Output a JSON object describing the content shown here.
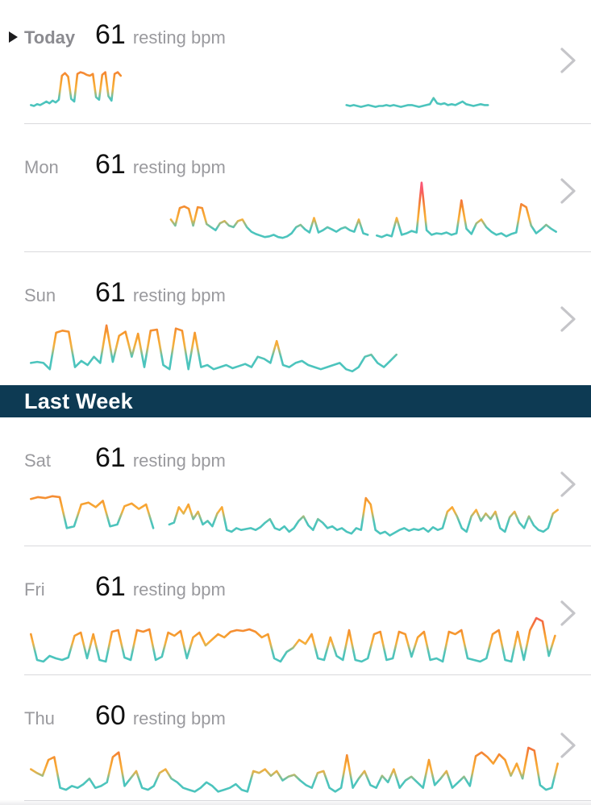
{
  "palette": {
    "header_bg": "#0d3a53",
    "header_text": "#ffffff",
    "line_low_teal": "#4cc4bd",
    "line_mid_amber": "#f9b13c",
    "line_high_orange": "#f59b2e",
    "line_higher_orange_red": "#f4703d",
    "line_peak_red": "#fa5672",
    "chevron_gray": "#c5c5c9",
    "day_label_gray": "#9a9a9e",
    "value_black": "#111111",
    "divider_gray": "#d9d9dc",
    "gradient_anchors_bpm": [
      [
        70,
        "#4cc4bd"
      ],
      [
        80,
        "#f9b13c"
      ],
      [
        92,
        "#f59b2e"
      ],
      [
        106,
        "#f4703d"
      ],
      [
        122,
        "#fa5672"
      ]
    ]
  },
  "icons": {
    "disclosure_triangle": "play-triangle",
    "row_chevron": "chevron-right"
  },
  "sections": [
    {
      "header": null,
      "rows": [
        {
          "day": "Today",
          "value": "61",
          "unit": "resting bpm",
          "chart": {
            "type": "line",
            "x_axis": "time of day (fraction)",
            "y_axis": "heart rate (bpm)",
            "segments": [
              {
                "x0": 0.005,
                "x1": 0.174,
                "values": [
                  62,
                  61,
                  63,
                  62,
                  64,
                  66,
                  64,
                  67,
                  65,
                  68,
                  95,
                  98,
                  94,
                  69,
                  66,
                  97,
                  99,
                  98,
                  96,
                  95,
                  97,
                  71,
                  68,
                  96,
                  99,
                  72,
                  67,
                  97,
                  99,
                  95
                ]
              },
              {
                "x0": 0.598,
                "x1": 0.864,
                "values": [
                  62,
                  61,
                  62,
                  61,
                  60,
                  61,
                  62,
                  61,
                  60,
                  61,
                  61,
                  62,
                  61,
                  62,
                  61,
                  60,
                  61,
                  62,
                  62,
                  61,
                  60,
                  61,
                  62,
                  63,
                  70,
                  64,
                  63,
                  64,
                  62,
                  63,
                  62,
                  64,
                  66,
                  63,
                  62,
                  61,
                  62,
                  63,
                  62,
                  62
                ]
              }
            ]
          }
        },
        {
          "day": "Mon",
          "value": "61",
          "unit": "resting bpm",
          "chart": {
            "type": "line",
            "x_axis": "time of day (fraction)",
            "y_axis": "heart rate (bpm)",
            "segments": [
              {
                "x0": 0.268,
                "x1": 0.638,
                "values": [
                  80,
                  72,
                  95,
                  97,
                  94,
                  72,
                  96,
                  95,
                  74,
                  70,
                  66,
                  75,
                  78,
                  72,
                  70,
                  78,
                  80,
                  70,
                  64,
                  61,
                  59,
                  57,
                  58,
                  60,
                  57,
                  56,
                  58,
                  62,
                  70,
                  73,
                  67,
                  63,
                  82,
                  63,
                  66,
                  70,
                  67,
                  64,
                  68,
                  70,
                  66,
                  64,
                  80,
                  62,
                  60
                ]
              },
              {
                "x0": 0.655,
                "x1": 0.992,
                "values": [
                  59,
                  57,
                  60,
                  58,
                  82,
                  60,
                  62,
                  65,
                  63,
                  128,
                  66,
                  60,
                  62,
                  61,
                  63,
                  60,
                  62,
                  105,
                  68,
                  61,
                  75,
                  80,
                  70,
                  64,
                  60,
                  62,
                  58,
                  61,
                  63,
                  100,
                  96,
                  72,
                  62,
                  67,
                  73,
                  68,
                  64
                ]
              }
            ]
          }
        },
        {
          "day": "Sun",
          "value": "61",
          "unit": "resting bpm",
          "chart": {
            "type": "line",
            "x_axis": "time of day (fraction)",
            "y_axis": "heart rate (bpm)",
            "segments": [
              {
                "x0": 0.005,
                "x1": 0.692,
                "values": [
                  64,
                  65,
                  64,
                  58,
                  93,
                  95,
                  94,
                  60,
                  66,
                  62,
                  70,
                  64,
                  100,
                  65,
                  90,
                  94,
                  70,
                  92,
                  60,
                  95,
                  96,
                  62,
                  58,
                  97,
                  95,
                  58,
                  93,
                  60,
                  62,
                  58,
                  60,
                  62,
                  59,
                  61,
                  63,
                  60,
                  70,
                  68,
                  64,
                  85,
                  62,
                  60,
                  64,
                  66,
                  62,
                  60,
                  58,
                  60,
                  62,
                  64,
                  58,
                  56,
                  60,
                  70,
                  72,
                  64,
                  60,
                  66,
                  72
                ]
              }
            ]
          }
        }
      ]
    },
    {
      "header": "Last Week",
      "rows": [
        {
          "day": "Sat",
          "value": "61",
          "unit": "resting bpm",
          "chart": {
            "type": "line",
            "x_axis": "time of day (fraction)",
            "y_axis": "heart rate (bpm)",
            "segments": [
              {
                "x0": 0.005,
                "x1": 0.235,
                "values": [
                  94,
                  96,
                  95,
                  97,
                  96,
                  62,
                  64,
                  88,
                  90,
                  85,
                  92,
                  64,
                  66,
                  86,
                  89,
                  83,
                  88,
                  62
                ]
              },
              {
                "x0": 0.265,
                "x1": 0.995,
                "values": [
                  66,
                  68,
                  85,
                  78,
                  88,
                  72,
                  80,
                  66,
                  70,
                  64,
                  78,
                  85,
                  60,
                  58,
                  62,
                  60,
                  61,
                  62,
                  60,
                  63,
                  68,
                  72,
                  62,
                  60,
                  64,
                  58,
                  62,
                  70,
                  75,
                  65,
                  60,
                  72,
                  68,
                  62,
                  64,
                  60,
                  62,
                  58,
                  56,
                  62,
                  60,
                  95,
                  88,
                  60,
                  56,
                  58,
                  54,
                  57,
                  60,
                  62,
                  59,
                  61,
                  60,
                  62,
                  58,
                  63,
                  60,
                  62,
                  80,
                  85,
                  75,
                  62,
                  58,
                  75,
                  82,
                  70,
                  78,
                  72,
                  80,
                  62,
                  58,
                  74,
                  80,
                  68,
                  62,
                  75,
                  65,
                  60,
                  58,
                  62,
                  78,
                  82
                ]
              }
            ]
          }
        },
        {
          "day": "Fri",
          "value": "61",
          "unit": "resting bpm",
          "chart": {
            "type": "line",
            "x_axis": "time of day (fraction)",
            "y_axis": "heart rate (bpm)",
            "segments": [
              {
                "x0": 0.005,
                "x1": 0.99,
                "values": [
                  92,
                  60,
                  58,
                  65,
                  62,
                  60,
                  63,
                  90,
                  94,
                  62,
                  92,
                  60,
                  58,
                  95,
                  97,
                  63,
                  60,
                  97,
                  95,
                  98,
                  60,
                  64,
                  94,
                  90,
                  96,
                  62,
                  88,
                  94,
                  78,
                  85,
                  92,
                  88,
                  95,
                  97,
                  96,
                  98,
                  95,
                  88,
                  92,
                  62,
                  58,
                  70,
                  75,
                  85,
                  80,
                  92,
                  62,
                  60,
                  88,
                  65,
                  60,
                  97,
                  60,
                  58,
                  62,
                  92,
                  95,
                  60,
                  62,
                  95,
                  92,
                  64,
                  88,
                  95,
                  60,
                  62,
                  58,
                  95,
                  92,
                  97,
                  62,
                  60,
                  58,
                  62,
                  92,
                  97,
                  60,
                  58,
                  95,
                  60,
                  97,
                  112,
                  108,
                  65,
                  90
                ]
              }
            ]
          }
        },
        {
          "day": "Thu",
          "value": "60",
          "unit": "resting bpm",
          "chart": {
            "type": "line",
            "x_axis": "time of day (fraction)",
            "y_axis": "heart rate (bpm)",
            "segments": [
              {
                "x0": 0.005,
                "x1": 0.995,
                "values": [
                  82,
                  78,
                  75,
                  92,
                  95,
                  62,
                  60,
                  64,
                  62,
                  66,
                  72,
                  62,
                  64,
                  68,
                  95,
                  100,
                  64,
                  72,
                  80,
                  62,
                  60,
                  64,
                  78,
                  82,
                  72,
                  68,
                  62,
                  60,
                  58,
                  62,
                  68,
                  64,
                  58,
                  60,
                  62,
                  66,
                  60,
                  58,
                  80,
                  78,
                  82,
                  75,
                  80,
                  70,
                  74,
                  76,
                  70,
                  65,
                  62,
                  78,
                  80,
                  62,
                  58,
                  62,
                  97,
                  62,
                  72,
                  80,
                  65,
                  62,
                  75,
                  68,
                  82,
                  62,
                  70,
                  74,
                  68,
                  62,
                  92,
                  65,
                  72,
                  80,
                  62,
                  68,
                  74,
                  64,
                  96,
                  100,
                  95,
                  88,
                  98,
                  92,
                  75,
                  88,
                  72,
                  105,
                  102,
                  65,
                  60,
                  62,
                  88
                ]
              }
            ]
          }
        }
      ]
    }
  ]
}
